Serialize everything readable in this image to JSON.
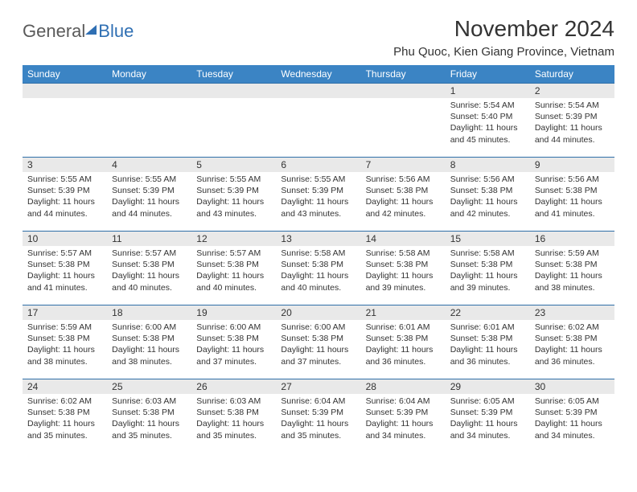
{
  "brand": {
    "word1": "General",
    "word2": "Blue"
  },
  "title": "November 2024",
  "location": "Phu Quoc, Kien Giang Province, Vietnam",
  "colors": {
    "header_bg": "#3b84c4",
    "header_text": "#ffffff",
    "daynum_bg": "#e9e9e9",
    "row_border": "#2f6fa8",
    "brand_gray": "#5a5a5a",
    "brand_blue": "#2f6fb3",
    "text": "#333333",
    "page_bg": "#ffffff"
  },
  "day_headers": [
    "Sunday",
    "Monday",
    "Tuesday",
    "Wednesday",
    "Thursday",
    "Friday",
    "Saturday"
  ],
  "weeks": [
    [
      null,
      null,
      null,
      null,
      null,
      {
        "n": "1",
        "sunrise": "Sunrise: 5:54 AM",
        "sunset": "Sunset: 5:40 PM",
        "daylight": "Daylight: 11 hours and 45 minutes."
      },
      {
        "n": "2",
        "sunrise": "Sunrise: 5:54 AM",
        "sunset": "Sunset: 5:39 PM",
        "daylight": "Daylight: 11 hours and 44 minutes."
      }
    ],
    [
      {
        "n": "3",
        "sunrise": "Sunrise: 5:55 AM",
        "sunset": "Sunset: 5:39 PM",
        "daylight": "Daylight: 11 hours and 44 minutes."
      },
      {
        "n": "4",
        "sunrise": "Sunrise: 5:55 AM",
        "sunset": "Sunset: 5:39 PM",
        "daylight": "Daylight: 11 hours and 44 minutes."
      },
      {
        "n": "5",
        "sunrise": "Sunrise: 5:55 AM",
        "sunset": "Sunset: 5:39 PM",
        "daylight": "Daylight: 11 hours and 43 minutes."
      },
      {
        "n": "6",
        "sunrise": "Sunrise: 5:55 AM",
        "sunset": "Sunset: 5:39 PM",
        "daylight": "Daylight: 11 hours and 43 minutes."
      },
      {
        "n": "7",
        "sunrise": "Sunrise: 5:56 AM",
        "sunset": "Sunset: 5:38 PM",
        "daylight": "Daylight: 11 hours and 42 minutes."
      },
      {
        "n": "8",
        "sunrise": "Sunrise: 5:56 AM",
        "sunset": "Sunset: 5:38 PM",
        "daylight": "Daylight: 11 hours and 42 minutes."
      },
      {
        "n": "9",
        "sunrise": "Sunrise: 5:56 AM",
        "sunset": "Sunset: 5:38 PM",
        "daylight": "Daylight: 11 hours and 41 minutes."
      }
    ],
    [
      {
        "n": "10",
        "sunrise": "Sunrise: 5:57 AM",
        "sunset": "Sunset: 5:38 PM",
        "daylight": "Daylight: 11 hours and 41 minutes."
      },
      {
        "n": "11",
        "sunrise": "Sunrise: 5:57 AM",
        "sunset": "Sunset: 5:38 PM",
        "daylight": "Daylight: 11 hours and 40 minutes."
      },
      {
        "n": "12",
        "sunrise": "Sunrise: 5:57 AM",
        "sunset": "Sunset: 5:38 PM",
        "daylight": "Daylight: 11 hours and 40 minutes."
      },
      {
        "n": "13",
        "sunrise": "Sunrise: 5:58 AM",
        "sunset": "Sunset: 5:38 PM",
        "daylight": "Daylight: 11 hours and 40 minutes."
      },
      {
        "n": "14",
        "sunrise": "Sunrise: 5:58 AM",
        "sunset": "Sunset: 5:38 PM",
        "daylight": "Daylight: 11 hours and 39 minutes."
      },
      {
        "n": "15",
        "sunrise": "Sunrise: 5:58 AM",
        "sunset": "Sunset: 5:38 PM",
        "daylight": "Daylight: 11 hours and 39 minutes."
      },
      {
        "n": "16",
        "sunrise": "Sunrise: 5:59 AM",
        "sunset": "Sunset: 5:38 PM",
        "daylight": "Daylight: 11 hours and 38 minutes."
      }
    ],
    [
      {
        "n": "17",
        "sunrise": "Sunrise: 5:59 AM",
        "sunset": "Sunset: 5:38 PM",
        "daylight": "Daylight: 11 hours and 38 minutes."
      },
      {
        "n": "18",
        "sunrise": "Sunrise: 6:00 AM",
        "sunset": "Sunset: 5:38 PM",
        "daylight": "Daylight: 11 hours and 38 minutes."
      },
      {
        "n": "19",
        "sunrise": "Sunrise: 6:00 AM",
        "sunset": "Sunset: 5:38 PM",
        "daylight": "Daylight: 11 hours and 37 minutes."
      },
      {
        "n": "20",
        "sunrise": "Sunrise: 6:00 AM",
        "sunset": "Sunset: 5:38 PM",
        "daylight": "Daylight: 11 hours and 37 minutes."
      },
      {
        "n": "21",
        "sunrise": "Sunrise: 6:01 AM",
        "sunset": "Sunset: 5:38 PM",
        "daylight": "Daylight: 11 hours and 36 minutes."
      },
      {
        "n": "22",
        "sunrise": "Sunrise: 6:01 AM",
        "sunset": "Sunset: 5:38 PM",
        "daylight": "Daylight: 11 hours and 36 minutes."
      },
      {
        "n": "23",
        "sunrise": "Sunrise: 6:02 AM",
        "sunset": "Sunset: 5:38 PM",
        "daylight": "Daylight: 11 hours and 36 minutes."
      }
    ],
    [
      {
        "n": "24",
        "sunrise": "Sunrise: 6:02 AM",
        "sunset": "Sunset: 5:38 PM",
        "daylight": "Daylight: 11 hours and 35 minutes."
      },
      {
        "n": "25",
        "sunrise": "Sunrise: 6:03 AM",
        "sunset": "Sunset: 5:38 PM",
        "daylight": "Daylight: 11 hours and 35 minutes."
      },
      {
        "n": "26",
        "sunrise": "Sunrise: 6:03 AM",
        "sunset": "Sunset: 5:38 PM",
        "daylight": "Daylight: 11 hours and 35 minutes."
      },
      {
        "n": "27",
        "sunrise": "Sunrise: 6:04 AM",
        "sunset": "Sunset: 5:39 PM",
        "daylight": "Daylight: 11 hours and 35 minutes."
      },
      {
        "n": "28",
        "sunrise": "Sunrise: 6:04 AM",
        "sunset": "Sunset: 5:39 PM",
        "daylight": "Daylight: 11 hours and 34 minutes."
      },
      {
        "n": "29",
        "sunrise": "Sunrise: 6:05 AM",
        "sunset": "Sunset: 5:39 PM",
        "daylight": "Daylight: 11 hours and 34 minutes."
      },
      {
        "n": "30",
        "sunrise": "Sunrise: 6:05 AM",
        "sunset": "Sunset: 5:39 PM",
        "daylight": "Daylight: 11 hours and 34 minutes."
      }
    ]
  ]
}
